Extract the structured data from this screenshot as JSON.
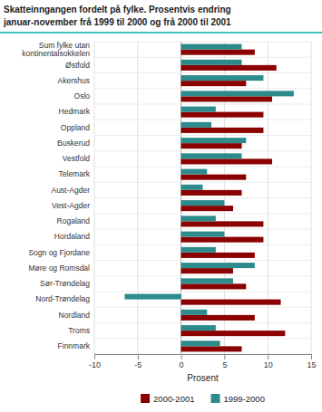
{
  "chart_data": {
    "type": "bar",
    "orientation": "horizontal",
    "title": "Skatteinngangen fordelt på fylke. Prosentvis endring",
    "subtitle": "januar-november frå 1999 til 2000 og frå 2000 til 2001",
    "categories": [
      "Sum fylke utan\nkontinentalsokkelen",
      "Østfold",
      "Akershus",
      "Oslo",
      "Hedmark",
      "Oppland",
      "Buskerud",
      "Vestfold",
      "Telemark",
      "Aust-Agder",
      "Vest-Agder",
      "Rogaland",
      "Hordaland",
      "Sogn og Fjordane",
      "Møre og Romsdal",
      "Sør-Trøndelag",
      "Nord-Trøndelag",
      "Nordland",
      "Troms",
      "Finnmark"
    ],
    "series": [
      {
        "name": "2000-2001",
        "color": "#8B0000",
        "values": [
          8.5,
          11.0,
          7.5,
          10.5,
          9.5,
          9.5,
          7.0,
          10.5,
          7.5,
          7.0,
          6.0,
          9.5,
          9.5,
          8.5,
          6.0,
          7.5,
          11.5,
          8.5,
          12.0,
          7.0
        ]
      },
      {
        "name": "1999-2000",
        "color": "#2E8B8B",
        "values": [
          7.0,
          7.0,
          9.5,
          13.0,
          4.0,
          3.5,
          7.5,
          7.0,
          3.0,
          2.5,
          5.0,
          4.0,
          5.0,
          4.0,
          8.5,
          6.0,
          -6.5,
          3.0,
          4.0,
          4.5
        ]
      }
    ],
    "xlabel": "Prosent",
    "xlim": [
      -10,
      15
    ],
    "xticks": [
      -10,
      -5,
      0,
      5,
      10,
      15
    ],
    "grid": true,
    "legend": "bottom"
  }
}
